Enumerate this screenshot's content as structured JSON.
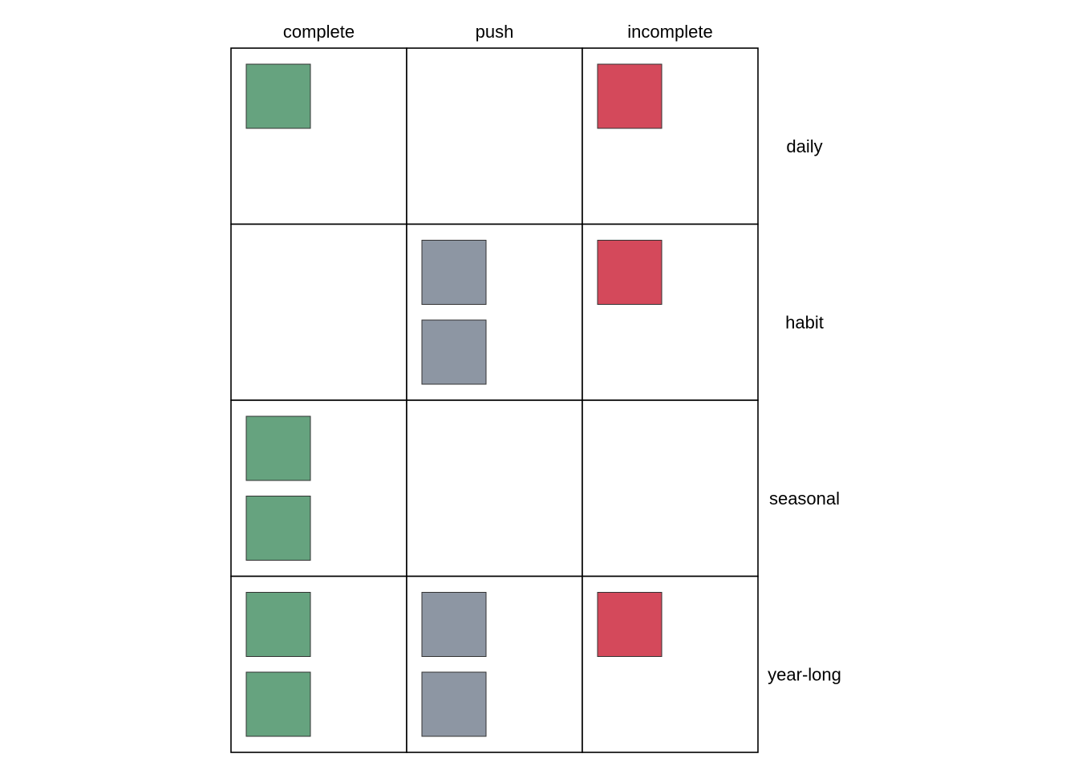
{
  "chart_data": {
    "type": "table",
    "columns": [
      "complete",
      "push",
      "incomplete"
    ],
    "rows": [
      "daily",
      "habit",
      "seasonal",
      "year-long"
    ],
    "colors": {
      "complete": "#66a37f",
      "push": "#8d96a3",
      "incomplete": "#d4495b",
      "cell_border": "#000000",
      "square_border": "#333333"
    },
    "counts": [
      [
        1,
        0,
        1
      ],
      [
        0,
        2,
        1
      ],
      [
        2,
        0,
        0
      ],
      [
        2,
        2,
        1
      ]
    ]
  }
}
